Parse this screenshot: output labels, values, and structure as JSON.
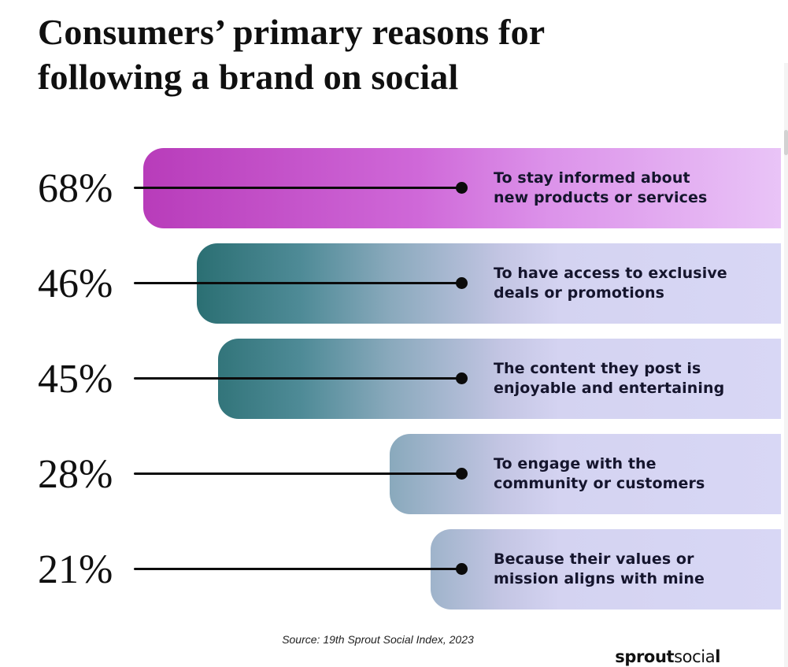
{
  "title": {
    "line1": "Consumers’ primary reasons for",
    "line2": "following a brand on social"
  },
  "chart_data": {
    "type": "bar",
    "orientation": "horizontal",
    "title": "Consumers’ primary reasons for following a brand on social",
    "value_unit": "%",
    "categories": [
      "To stay informed about new products or services",
      "To have access to exclusive deals or promotions",
      "The content they post is enjoyable and entertaining",
      "To engage with the community or customers",
      "Because their values or mission aligns with mine"
    ],
    "values": [
      68,
      46,
      45,
      28,
      21
    ],
    "legend": "none",
    "axes": "none",
    "bar_style": "left-rounded gradient bars running to the right edge; black connector line with end dot links each percentage label to its category label inside the bar",
    "source": "Source: 19th Sprout Social Index, 2023"
  },
  "rows": [
    {
      "value": "68%",
      "label_line1": "To stay informed about",
      "label_line2": "new products or services"
    },
    {
      "value": "46%",
      "label_line1": "To have access to exclusive",
      "label_line2": "deals or promotions"
    },
    {
      "value": "45%",
      "label_line1": "The content they post is",
      "label_line2": "enjoyable and entertaining"
    },
    {
      "value": "28%",
      "label_line1": "To engage with the",
      "label_line2": "community or customers"
    },
    {
      "value": "21%",
      "label_line1": "Because their values or",
      "label_line2": "mission aligns with mine"
    }
  ],
  "source": "Source: 19th Sprout Social Index, 2023",
  "logo": {
    "bold": "sprout",
    "regular": "socia",
    "tail": "l"
  },
  "colors": {
    "magenta_start": "#b83cba",
    "magenta_end": "#e9c4f7",
    "teal_start": "#2b6f73",
    "lavender_end": "#d8d7f5",
    "label_text": "#15152d",
    "connector": "#0b0b0b"
  }
}
